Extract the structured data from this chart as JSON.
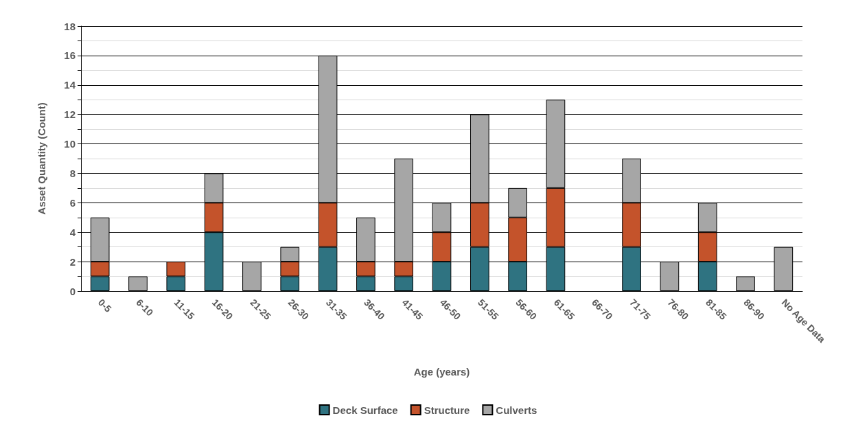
{
  "chart_data": {
    "type": "bar",
    "stacked": true,
    "xlabel": "Age (years)",
    "ylabel": "Asset Quantity (Count)",
    "categories": [
      "0-5",
      "6-10",
      "11-15",
      "16-20",
      "21-25",
      "26-30",
      "31-35",
      "36-40",
      "41-45",
      "46-50",
      "51-55",
      "56-60",
      "61-65",
      "66-70",
      "71-75",
      "76-80",
      "81-85",
      "86-90",
      "No Age Data"
    ],
    "series": [
      {
        "name": "Deck Surface",
        "color": "#2f7381",
        "values": [
          1,
          0,
          1,
          4,
          0,
          1,
          3,
          1,
          1,
          2,
          3,
          2,
          3,
          0,
          3,
          0,
          2,
          0,
          0
        ]
      },
      {
        "name": "Structure",
        "color": "#c4532b",
        "values": [
          1,
          0,
          1,
          2,
          0,
          1,
          3,
          1,
          1,
          2,
          3,
          3,
          4,
          0,
          3,
          0,
          2,
          0,
          0
        ]
      },
      {
        "name": "Culverts",
        "color": "#a6a6a6",
        "values": [
          3,
          1,
          0,
          2,
          2,
          1,
          10,
          3,
          7,
          2,
          6,
          2,
          6,
          0,
          3,
          2,
          2,
          1,
          3
        ]
      }
    ],
    "ylim": [
      0,
      18
    ],
    "yticks": [
      0,
      {
        "value": 1,
        "label": null
      },
      2,
      {
        "value": 3,
        "label": null
      },
      4,
      {
        "value": 5,
        "label": null
      },
      6,
      {
        "value": 7,
        "label": null
      },
      8,
      {
        "value": 9,
        "label": null
      },
      10,
      {
        "value": 11,
        "label": null
      },
      12,
      {
        "value": 13,
        "label": null
      },
      14,
      {
        "value": 15,
        "label": null
      },
      16,
      {
        "value": 17,
        "label": null
      },
      18
    ],
    "grid": "y",
    "legend": "bottom"
  }
}
